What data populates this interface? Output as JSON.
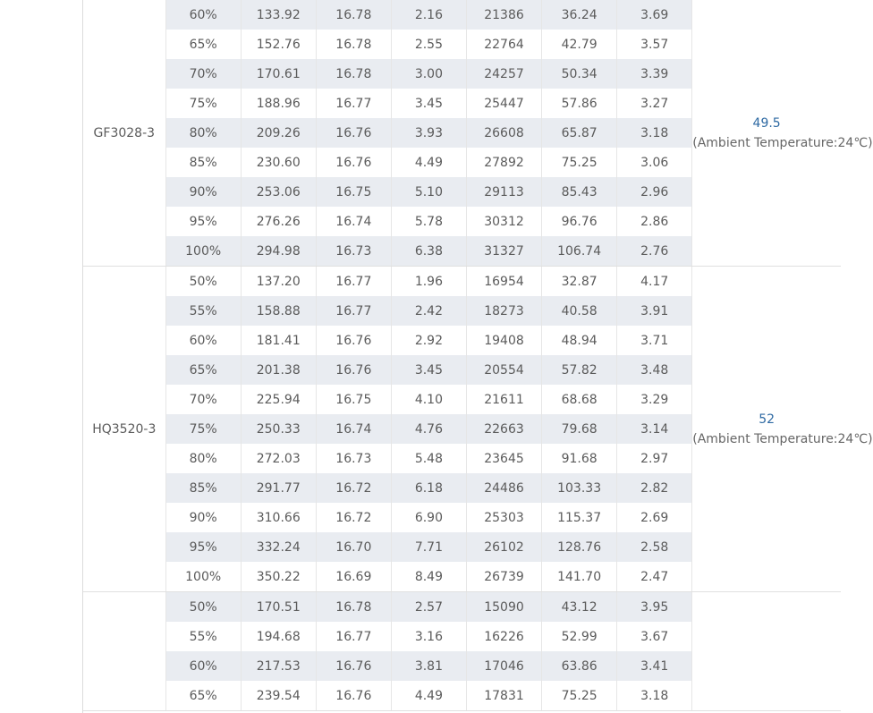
{
  "groups": [
    {
      "model": "GF3028-3",
      "note_value": "49.5",
      "note_text": "(Ambient Temperature:24℃)",
      "rows": [
        [
          "60%",
          "133.92",
          "16.78",
          "2.16",
          "21386",
          "36.24",
          "3.69"
        ],
        [
          "65%",
          "152.76",
          "16.78",
          "2.55",
          "22764",
          "42.79",
          "3.57"
        ],
        [
          "70%",
          "170.61",
          "16.78",
          "3.00",
          "24257",
          "50.34",
          "3.39"
        ],
        [
          "75%",
          "188.96",
          "16.77",
          "3.45",
          "25447",
          "57.86",
          "3.27"
        ],
        [
          "80%",
          "209.26",
          "16.76",
          "3.93",
          "26608",
          "65.87",
          "3.18"
        ],
        [
          "85%",
          "230.60",
          "16.76",
          "4.49",
          "27892",
          "75.25",
          "3.06"
        ],
        [
          "90%",
          "253.06",
          "16.75",
          "5.10",
          "29113",
          "85.43",
          "2.96"
        ],
        [
          "95%",
          "276.26",
          "16.74",
          "5.78",
          "30312",
          "96.76",
          "2.86"
        ],
        [
          "100%",
          "294.98",
          "16.73",
          "6.38",
          "31327",
          "106.74",
          "2.76"
        ]
      ]
    },
    {
      "model": "HQ3520-3",
      "note_value": "52",
      "note_text": "(Ambient Temperature:24℃)",
      "rows": [
        [
          "50%",
          "137.20",
          "16.77",
          "1.96",
          "16954",
          "32.87",
          "4.17"
        ],
        [
          "55%",
          "158.88",
          "16.77",
          "2.42",
          "18273",
          "40.58",
          "3.91"
        ],
        [
          "60%",
          "181.41",
          "16.76",
          "2.92",
          "19408",
          "48.94",
          "3.71"
        ],
        [
          "65%",
          "201.38",
          "16.76",
          "3.45",
          "20554",
          "57.82",
          "3.48"
        ],
        [
          "70%",
          "225.94",
          "16.75",
          "4.10",
          "21611",
          "68.68",
          "3.29"
        ],
        [
          "75%",
          "250.33",
          "16.74",
          "4.76",
          "22663",
          "79.68",
          "3.14"
        ],
        [
          "80%",
          "272.03",
          "16.73",
          "5.48",
          "23645",
          "91.68",
          "2.97"
        ],
        [
          "85%",
          "291.77",
          "16.72",
          "6.18",
          "24486",
          "103.33",
          "2.82"
        ],
        [
          "90%",
          "310.66",
          "16.72",
          "6.90",
          "25303",
          "115.37",
          "2.69"
        ],
        [
          "95%",
          "332.24",
          "16.70",
          "7.71",
          "26102",
          "128.76",
          "2.58"
        ],
        [
          "100%",
          "350.22",
          "16.69",
          "8.49",
          "26739",
          "141.70",
          "2.47"
        ]
      ]
    },
    {
      "model": "",
      "note_value": "",
      "note_text": "",
      "rows": [
        [
          "50%",
          "170.51",
          "16.78",
          "2.57",
          "15090",
          "43.12",
          "3.95"
        ],
        [
          "55%",
          "194.68",
          "16.77",
          "3.16",
          "16226",
          "52.99",
          "3.67"
        ],
        [
          "60%",
          "217.53",
          "16.76",
          "3.81",
          "17046",
          "63.86",
          "3.41"
        ],
        [
          "65%",
          "239.54",
          "16.76",
          "4.49",
          "17831",
          "75.25",
          "3.18"
        ]
      ]
    }
  ],
  "colors": {
    "stripe": "#e9ecf1",
    "text": "#5b5b5b",
    "temp_value": "#2f6aa3",
    "border": "#e0e0e0"
  }
}
